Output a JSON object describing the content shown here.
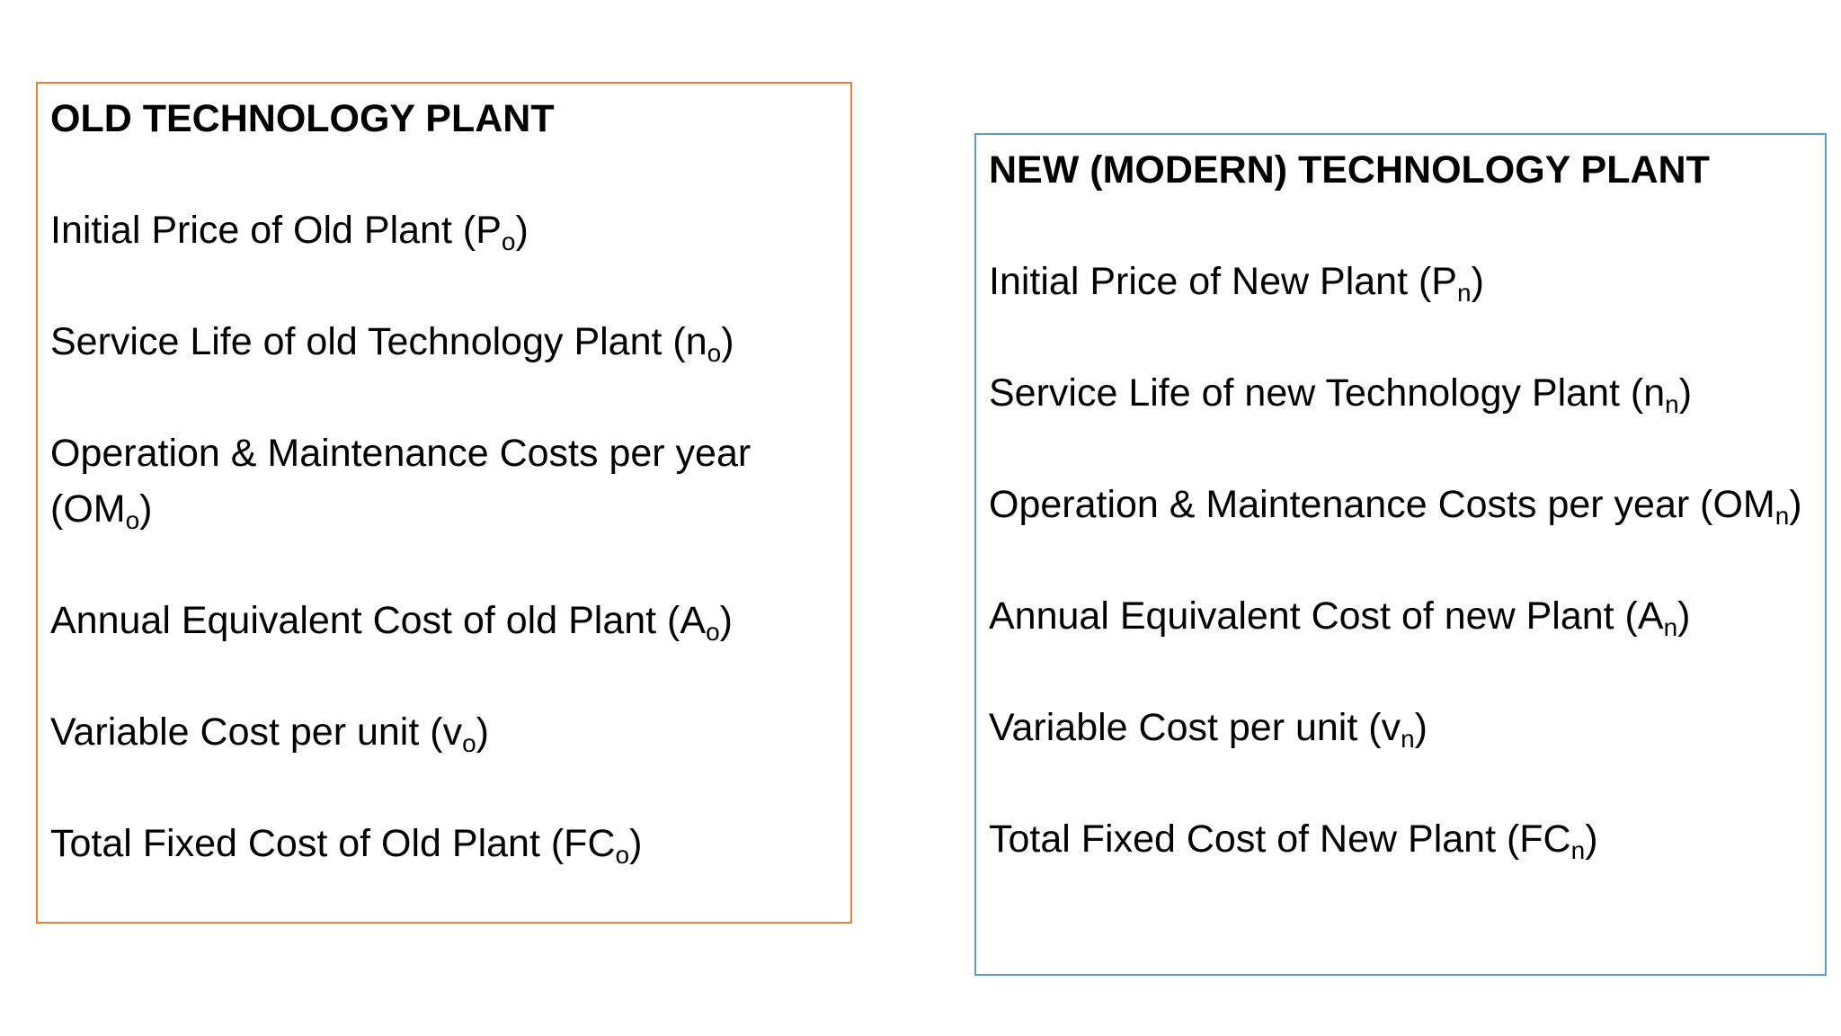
{
  "old_panel": {
    "title": "OLD TECHNOLOGY PLANT",
    "items": [
      {
        "text": "Initial Price of Old Plant (P",
        "sub": "o",
        "close": ")"
      },
      {
        "text": "Service Life of old Technology Plant (n",
        "sub": "o",
        "close": ")"
      },
      {
        "text": "Operation & Maintenance Costs per year (OM",
        "sub": "o",
        "close": ")"
      },
      {
        "text": "Annual Equivalent Cost of old Plant (A",
        "sub": "o",
        "close": ")"
      },
      {
        "text": "Variable Cost per unit (v",
        "sub": "o",
        "close": ")"
      },
      {
        "text": "Total Fixed Cost of Old Plant (FC",
        "sub": "o",
        "close": ")"
      }
    ],
    "border_color": "#ed7d31"
  },
  "new_panel": {
    "title": "NEW (MODERN) TECHNOLOGY PLANT",
    "items": [
      {
        "text": "Initial Price of New Plant (P",
        "sub": "n",
        "close": ")"
      },
      {
        "text": "Service Life of new Technology Plant (n",
        "sub": "n",
        "close": ")"
      },
      {
        "text": "Operation & Maintenance Costs per year (OM",
        "sub": "n",
        "close": ")"
      },
      {
        "text": "Annual Equivalent Cost of new Plant (A",
        "sub": "n",
        "close": ")"
      },
      {
        "text": "Variable Cost per unit (v",
        "sub": "n",
        "close": ")"
      },
      {
        "text": "Total Fixed Cost of New Plant (FC",
        "sub": "n",
        "close": ")"
      }
    ],
    "border_color": "#5b9bd5"
  }
}
